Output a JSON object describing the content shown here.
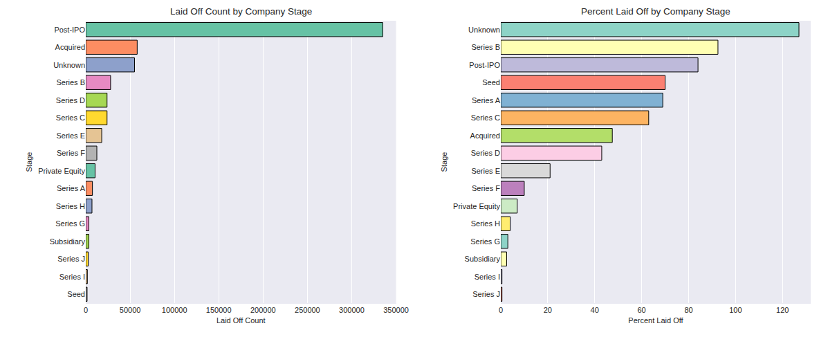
{
  "chart_data": [
    {
      "type": "bar",
      "orientation": "horizontal",
      "title": "Laid Off Count by Company Stage",
      "x_label": "Laid Off Count",
      "y_label": "Stage",
      "categories": [
        "Post-IPO",
        "Acquired",
        "Unknown",
        "Series B",
        "Series D",
        "Series C",
        "Series E",
        "Series F",
        "Private Equity",
        "Series A",
        "Series H",
        "Series G",
        "Subsidiary",
        "Series J",
        "Series I",
        "Seed"
      ],
      "values": [
        335000,
        58000,
        55000,
        28000,
        24000,
        24000,
        18000,
        12500,
        10500,
        7500,
        7000,
        3500,
        3500,
        2800,
        1800,
        1500
      ],
      "colors": [
        "#66c2a5",
        "#fc8d62",
        "#8da0cb",
        "#e78ac3",
        "#a6d854",
        "#ffd92f",
        "#e5c494",
        "#b3b3b3",
        "#66c2a5",
        "#fc8d62",
        "#8da0cb",
        "#e78ac3",
        "#a6d854",
        "#ffd92f",
        "#e5c494",
        "#b3b3b3"
      ],
      "xlim": [
        0,
        350000
      ],
      "xticks": [
        0,
        50000,
        100000,
        150000,
        200000,
        250000,
        300000,
        350000
      ],
      "grid": true
    },
    {
      "type": "bar",
      "orientation": "horizontal",
      "title": "Percent Laid Off by Company Stage",
      "x_label": "Percent Laid Off",
      "y_label": "Stage",
      "categories": [
        "Unknown",
        "Series B",
        "Post-IPO",
        "Seed",
        "Series A",
        "Series C",
        "Acquired",
        "Series D",
        "Series E",
        "Series F",
        "Private Equity",
        "Series H",
        "Series G",
        "Subsidiary",
        "Series I",
        "Series J"
      ],
      "values": [
        127,
        92.5,
        84,
        70,
        69,
        63,
        47.5,
        43,
        21,
        10,
        7,
        4,
        3,
        2.5,
        0.5,
        0.5
      ],
      "colors": [
        "#8dd3c7",
        "#ffffb3",
        "#bebada",
        "#fb8072",
        "#80b1d3",
        "#fdb462",
        "#b3de69",
        "#fccde5",
        "#d9d9d9",
        "#bc80bd",
        "#ccebc5",
        "#ffed6f",
        "#8dd3c7",
        "#ffffb3",
        "#bebada",
        "#fb8072"
      ],
      "xlim": [
        0,
        132
      ],
      "xticks": [
        0,
        20,
        40,
        60,
        80,
        100,
        120
      ],
      "grid": true
    }
  ]
}
